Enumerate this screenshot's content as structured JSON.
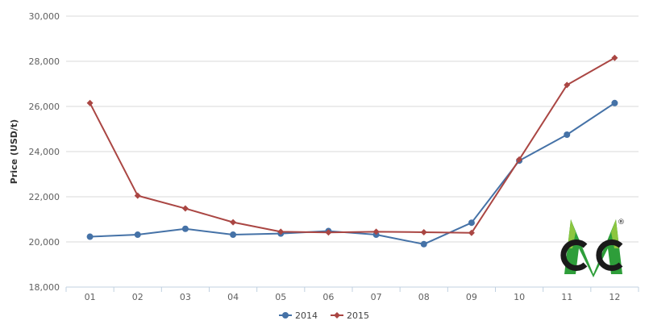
{
  "chart_data": {
    "type": "line",
    "ylabel": "Price (USD/t)",
    "xlabel": "",
    "categories": [
      "01",
      "02",
      "03",
      "04",
      "05",
      "06",
      "07",
      "08",
      "09",
      "10",
      "11",
      "12"
    ],
    "y_tick_labels": [
      "18,000",
      "20,000",
      "22,000",
      "24,000",
      "26,000",
      "28,000",
      "30,000"
    ],
    "ylim": [
      18000,
      30000
    ],
    "grid": "horizontal",
    "legend_position": "bottom-center",
    "series": [
      {
        "name": "2014",
        "color": "#4572a7",
        "marker": "circle",
        "values": [
          20230,
          20320,
          20580,
          20320,
          20370,
          20480,
          20320,
          19900,
          20850,
          23600,
          24750,
          26150
        ]
      },
      {
        "name": "2015",
        "color": "#aa4643",
        "marker": "diamond",
        "values": [
          26150,
          22050,
          21480,
          20870,
          20450,
          20420,
          20450,
          20430,
          20400,
          23650,
          26950,
          28150
        ]
      }
    ]
  },
  "logo": {
    "text": "CMC",
    "registered": "®",
    "color_dark": "#1a1a1a",
    "color_green": "#2e9e3a"
  }
}
